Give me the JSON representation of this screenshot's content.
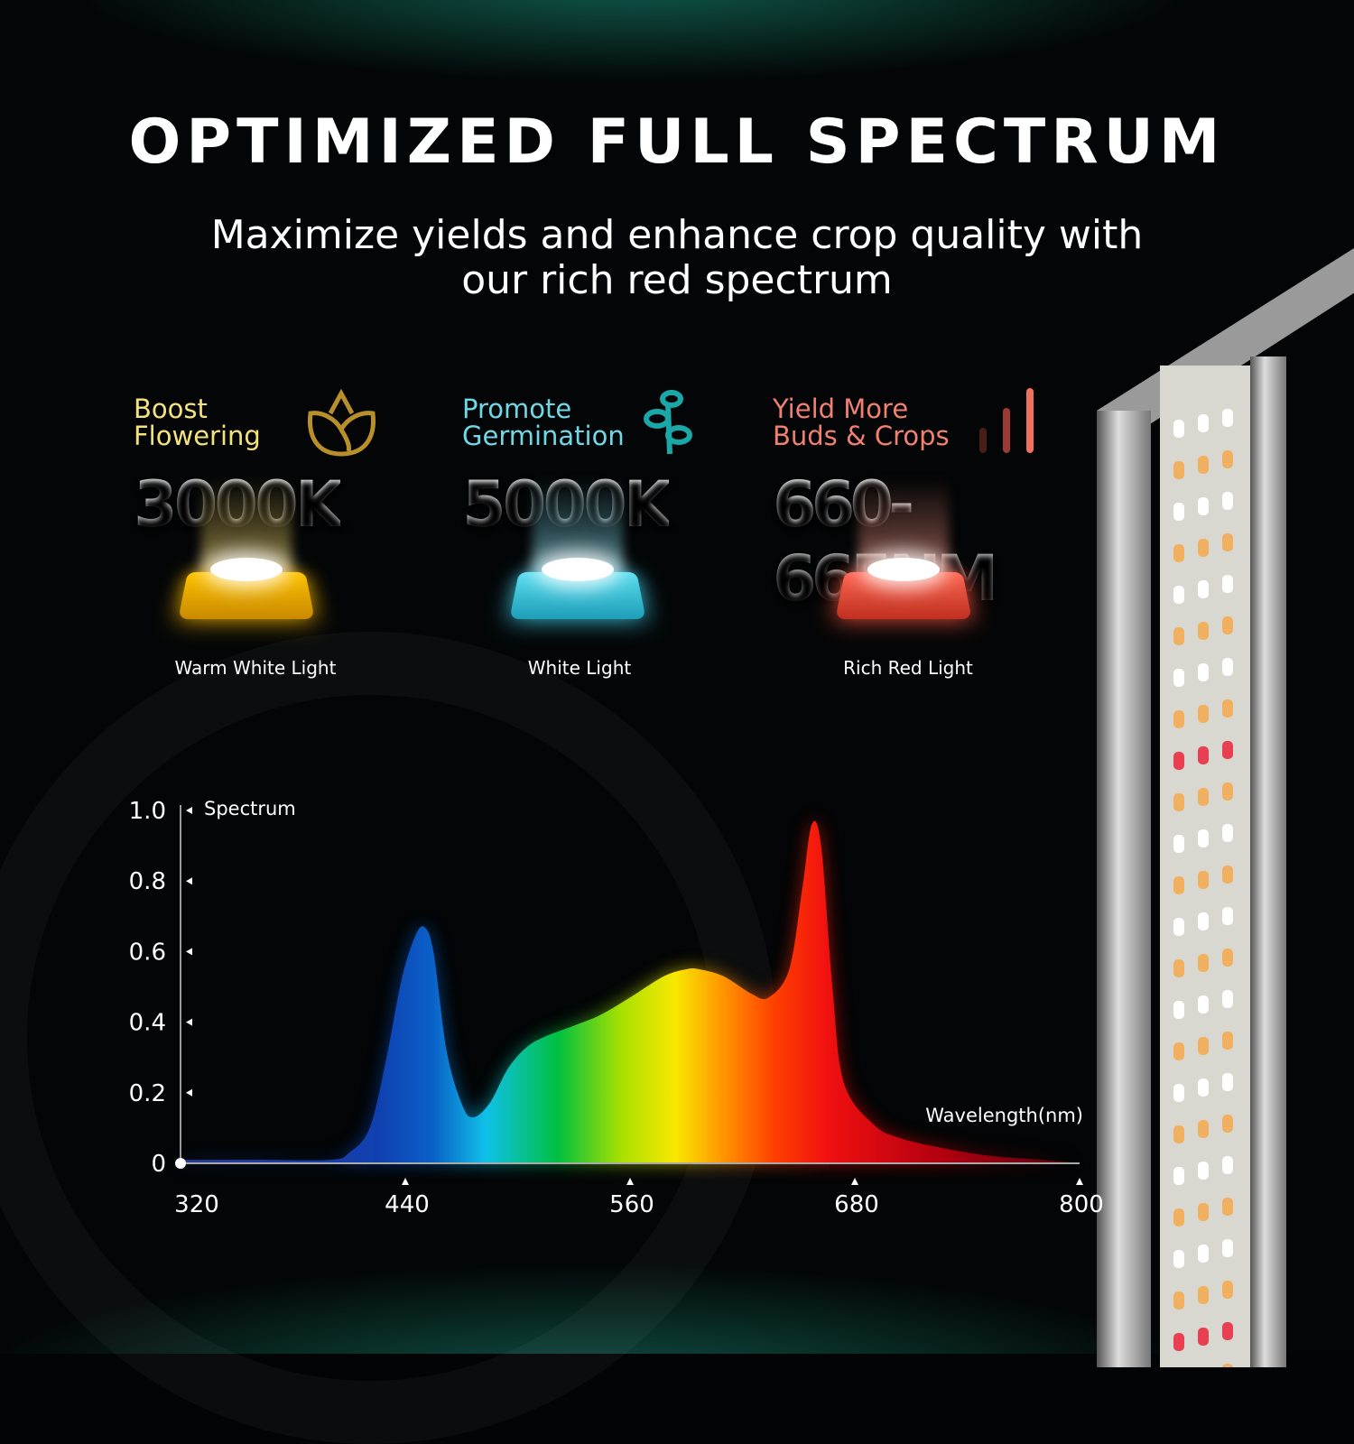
{
  "title": "OPTIMIZED FULL SPECTRUM",
  "subtitle": "Maximize yields and enhance crop quality with our rich red spectrum",
  "features": [
    {
      "label": "Boost\nFlowering",
      "value": "3000K",
      "caption": "Warm White Light",
      "color": "#f4e27a",
      "icon": "flower-icon",
      "chip_color": "#f6b400"
    },
    {
      "label": "Promote\nGermination",
      "value": "5000K",
      "caption": "White Light",
      "color": "#6fd8e6",
      "icon": "sprout-icon",
      "chip_color": "#3fc6e0"
    },
    {
      "label": "Yield More\nBuds & Crops",
      "value": "660-665NM",
      "caption": "Rich Red Light",
      "color": "#f08070",
      "icon": "bar-chart-icon",
      "chip_color": "#f0503c"
    }
  ],
  "chart_data": {
    "type": "area",
    "ylabel": "Spectrum",
    "xlabel": "Wavelength(nm)",
    "xlim": [
      320,
      800
    ],
    "ylim": [
      0,
      1.0
    ],
    "x_ticks": [
      "320",
      "440",
      "560",
      "680",
      "800"
    ],
    "y_ticks": [
      "0",
      "0.2",
      "0.4",
      "0.6",
      "0.8",
      "1.0"
    ],
    "grid": false,
    "x": [
      320,
      360,
      400,
      410,
      421,
      430,
      438,
      445,
      450,
      455,
      462,
      470,
      476,
      485,
      495,
      505,
      515,
      530,
      544,
      560,
      578,
      590,
      597,
      610,
      625,
      634,
      645,
      652,
      657,
      662,
      668,
      674,
      690,
      705,
      730,
      754,
      780,
      800
    ],
    "y": [
      0.01,
      0.01,
      0.01,
      0.03,
      0.1,
      0.3,
      0.52,
      0.64,
      0.67,
      0.6,
      0.32,
      0.17,
      0.13,
      0.17,
      0.27,
      0.33,
      0.36,
      0.39,
      0.42,
      0.47,
      0.53,
      0.55,
      0.55,
      0.53,
      0.48,
      0.47,
      0.55,
      0.78,
      0.96,
      0.9,
      0.5,
      0.23,
      0.11,
      0.07,
      0.04,
      0.02,
      0.01,
      0.0
    ]
  }
}
